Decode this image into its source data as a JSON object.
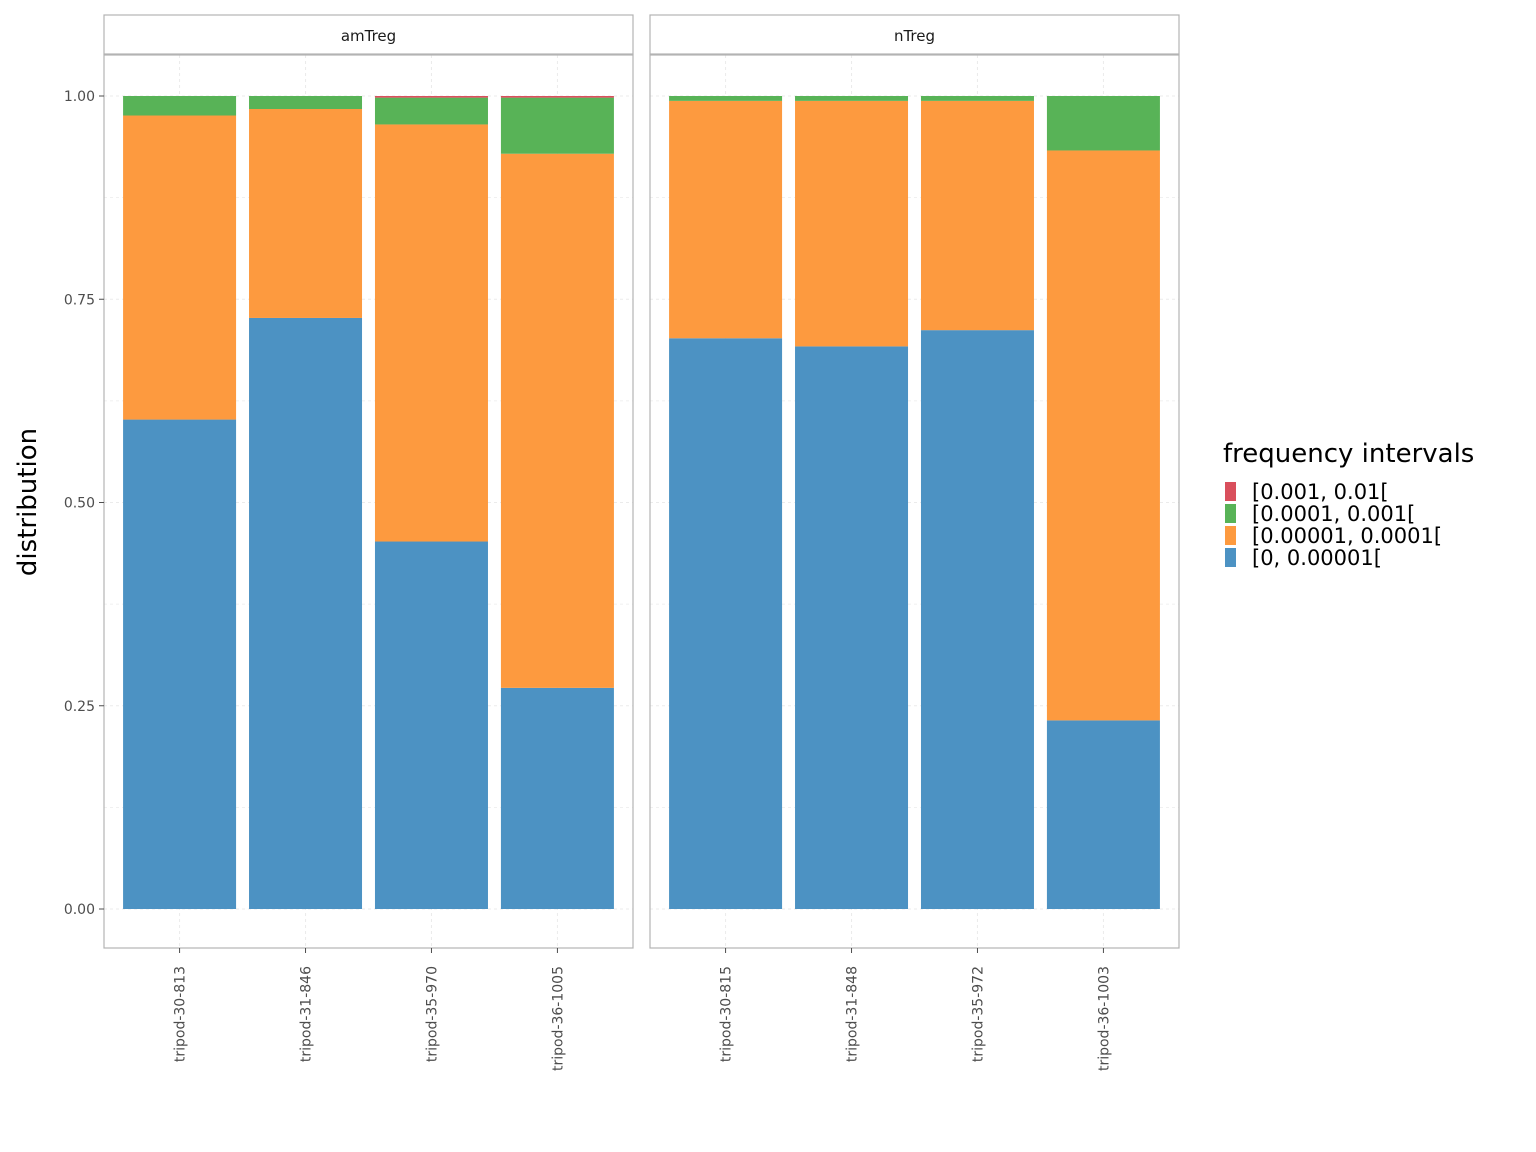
{
  "chart_data": {
    "type": "bar",
    "stacked": true,
    "ylabel": "distribution",
    "xlabel": "",
    "ylim": [
      0,
      1.05
    ],
    "yticks": [
      0.0,
      0.25,
      0.5,
      0.75,
      1.0
    ],
    "ytick_labels": [
      "0.00",
      "0.25",
      "0.50",
      "0.75",
      "1.00"
    ],
    "grid": true,
    "legend": {
      "title": "frequency intervals",
      "placement": "right",
      "entries": [
        {
          "label": "[0.001, 0.01[",
          "color": "#d94f5c"
        },
        {
          "label": "[0.0001, 0.001[",
          "color": "#58b357"
        },
        {
          "label": "[0.00001, 0.0001[",
          "color": "#fd9a3f"
        },
        {
          "label": "[0, 0.00001[",
          "color": "#4c92c3"
        }
      ]
    },
    "series_order": [
      "[0, 0.00001[",
      "[0.00001, 0.0001[",
      "[0.0001, 0.001[",
      "[0.001, 0.01["
    ],
    "panels": [
      {
        "strip": "amTreg",
        "categories": [
          "tripod-30-813",
          "tripod-31-846",
          "tripod-35-970",
          "tripod-36-1005"
        ],
        "series": [
          {
            "name": "[0, 0.00001[",
            "values": [
              0.602,
              0.727,
              0.452,
              0.272
            ]
          },
          {
            "name": "[0.00001, 0.0001[",
            "values": [
              0.374,
              0.257,
              0.513,
              0.657
            ]
          },
          {
            "name": "[0.0001, 0.001[",
            "values": [
              0.024,
              0.016,
              0.033,
              0.069
            ]
          },
          {
            "name": "[0.001, 0.01[",
            "values": [
              0.0,
              0.0,
              0.002,
              0.002
            ]
          }
        ]
      },
      {
        "strip": "nTreg",
        "categories": [
          "tripod-30-815",
          "tripod-31-848",
          "tripod-35-972",
          "tripod-36-1003"
        ],
        "series": [
          {
            "name": "[0, 0.00001[",
            "values": [
              0.702,
              0.692,
              0.712,
              0.232
            ]
          },
          {
            "name": "[0.00001, 0.0001[",
            "values": [
              0.292,
              0.302,
              0.282,
              0.701
            ]
          },
          {
            "name": "[0.0001, 0.001[",
            "values": [
              0.006,
              0.006,
              0.006,
              0.067
            ]
          },
          {
            "name": "[0.001, 0.01[",
            "values": [
              0.0,
              0.0,
              0.0,
              0.0
            ]
          }
        ]
      }
    ]
  }
}
